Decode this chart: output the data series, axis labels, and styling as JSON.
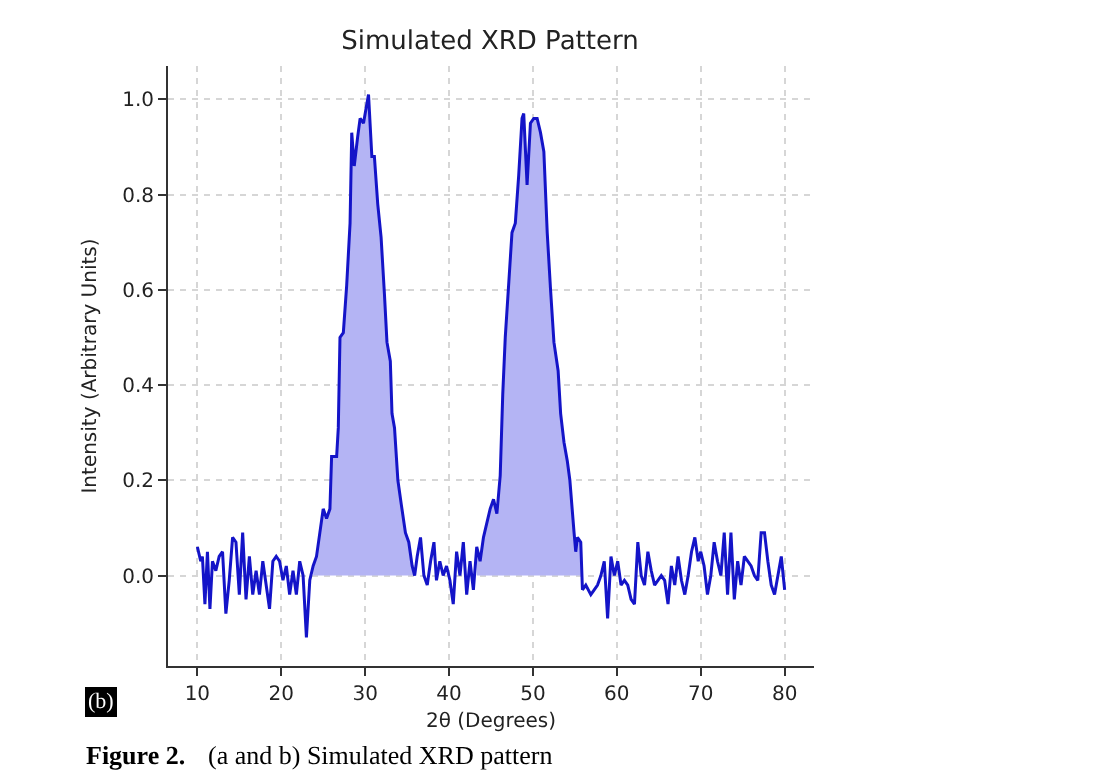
{
  "chart_data": {
    "type": "line",
    "title": "Simulated XRD Pattern",
    "xlabel": "2θ (Degrees)",
    "ylabel": "Intensity (Arbitrary Units)",
    "annotations": [
      "(b)",
      "Figure 2.",
      "(a and b) Simulated XRD pattern"
    ],
    "xlim": [
      6.5,
      83.5
    ],
    "xticks": [
      10,
      20,
      30,
      40,
      50,
      60,
      70,
      80
    ],
    "ylim": [
      -0.19,
      1.07
    ],
    "yticks": [
      {
        "value": 0,
        "label": "0.0"
      },
      0.2,
      0.4,
      0.6,
      0.8,
      {
        "value": 1,
        "label": "1.0"
      }
    ],
    "grid": true,
    "marker": "none",
    "line_style": "solid",
    "series": [
      {
        "type": "area",
        "color": "#b4b4f4",
        "x": [
          23.8,
          24.2,
          24.6,
          25.0,
          25.4,
          25.8,
          26.0,
          26.6,
          26.8,
          27.0,
          27.4,
          27.8,
          28.2,
          28.4,
          28.7,
          29.1,
          29.4,
          29.8,
          30.2,
          30.4,
          30.8,
          31.1,
          31.5,
          31.9,
          32.3,
          32.6,
          33.0,
          33.2,
          33.5,
          33.9,
          34.3,
          34.8,
          35.2,
          35.6,
          35.9
        ],
        "values": [
          0.02,
          0.04,
          0.09,
          0.14,
          0.12,
          0.14,
          0.25,
          0.25,
          0.31,
          0.5,
          0.51,
          0.61,
          0.74,
          0.93,
          0.86,
          0.92,
          0.96,
          0.95,
          0.99,
          1.01,
          0.88,
          0.88,
          0.78,
          0.71,
          0.59,
          0.49,
          0.45,
          0.34,
          0.31,
          0.2,
          0.15,
          0.09,
          0.07,
          0.02,
          0
        ]
      },
      {
        "type": "area",
        "color": "#b4b4f4",
        "x": [
          43.3,
          43.7,
          44.1,
          44.5,
          44.9,
          45.3,
          45.7,
          46.1,
          46.4,
          46.7,
          47.1,
          47.5,
          47.9,
          48.3,
          48.7,
          48.9,
          49.3,
          49.7,
          50.1,
          50.5,
          50.9,
          51.3,
          51.7,
          52.1,
          52.5,
          53.0,
          53.3,
          53.7,
          54.1,
          54.4,
          54.9,
          55.1,
          55.3,
          55.7
        ],
        "values": [
          0.06,
          0.03,
          0.08,
          0.11,
          0.14,
          0.16,
          0.13,
          0.21,
          0.38,
          0.5,
          0.61,
          0.72,
          0.74,
          0.84,
          0.96,
          0.97,
          0.82,
          0.95,
          0.96,
          0.96,
          0.93,
          0.89,
          0.72,
          0.6,
          0.49,
          0.43,
          0.34,
          0.28,
          0.24,
          0.2,
          0.09,
          0.05,
          0.08,
          0.07
        ]
      },
      {
        "color": "#1414c8",
        "x": [
          10.0,
          10.4,
          10.6,
          10.9,
          11.2,
          11.5,
          11.8,
          12.2,
          12.6,
          13.0,
          13.4,
          13.8,
          14.2,
          14.6,
          15.0,
          15.4,
          15.8,
          16.2,
          16.6,
          17.0,
          17.4,
          17.8,
          18.2,
          18.6,
          19.0,
          19.4,
          19.8,
          20.2,
          20.6,
          21.0,
          21.4,
          21.8,
          22.2,
          22.6,
          23.0,
          23.4,
          23.8,
          24.2,
          24.6,
          25.0,
          25.4,
          25.8,
          26.0,
          26.6,
          26.8,
          27.0,
          27.4,
          27.8,
          28.2,
          28.4,
          28.7,
          29.1,
          29.4,
          29.8,
          30.2,
          30.4,
          30.8,
          31.1,
          31.5,
          31.9,
          32.3,
          32.6,
          33.0,
          33.2,
          33.5,
          33.9,
          34.3,
          34.8,
          35.2,
          35.6,
          35.9,
          36.2,
          36.6,
          37.0,
          37.4,
          37.8,
          38.2,
          38.5,
          38.9,
          39.3,
          39.7,
          40.1,
          40.5,
          40.9,
          41.3,
          41.7,
          42.1,
          42.5,
          42.9,
          43.3,
          43.7,
          44.1,
          44.5,
          44.9,
          45.3,
          45.7,
          46.1,
          46.4,
          46.7,
          47.1,
          47.5,
          47.9,
          48.3,
          48.7,
          48.9,
          49.3,
          49.7,
          50.1,
          50.5,
          50.9,
          51.3,
          51.7,
          52.1,
          52.5,
          53.0,
          53.3,
          53.7,
          54.1,
          54.4,
          54.9,
          55.1,
          55.3,
          55.7,
          55.9,
          56.3,
          56.9,
          57.3,
          57.7,
          58.1,
          58.5,
          58.9,
          59.3,
          59.7,
          60.1,
          60.5,
          60.9,
          61.3,
          61.7,
          62.1,
          62.5,
          62.9,
          63.3,
          63.7,
          64.1,
          64.5,
          64.9,
          65.3,
          65.7,
          66.1,
          66.5,
          66.9,
          67.3,
          67.7,
          68.1,
          68.5,
          68.9,
          69.3,
          69.7,
          70.0,
          70.4,
          70.8,
          71.2,
          71.6,
          72.0,
          72.4,
          72.8,
          73.2,
          73.6,
          74.0,
          74.4,
          74.8,
          75.2,
          75.6,
          76.0,
          76.4,
          76.8,
          77.2,
          77.6,
          78.0,
          78.4,
          78.8,
          79.2,
          79.6,
          80.0
        ],
        "values": [
          0.06,
          0.03,
          0.04,
          -0.06,
          0.05,
          -0.07,
          0.03,
          0.01,
          0.04,
          0.05,
          -0.08,
          -0.01,
          0.08,
          0.07,
          -0.04,
          0.09,
          -0.05,
          0.04,
          -0.04,
          0.01,
          -0.04,
          0.03,
          -0.02,
          -0.07,
          0.03,
          0.04,
          0.03,
          -0.01,
          0.02,
          -0.04,
          0.01,
          -0.04,
          0.03,
          0,
          -0.13,
          -0.01,
          0.02,
          0.04,
          0.09,
          0.14,
          0.12,
          0.14,
          0.25,
          0.25,
          0.31,
          0.5,
          0.51,
          0.61,
          0.74,
          0.93,
          0.86,
          0.92,
          0.96,
          0.95,
          0.99,
          1.01,
          0.88,
          0.88,
          0.78,
          0.71,
          0.59,
          0.49,
          0.45,
          0.34,
          0.31,
          0.2,
          0.15,
          0.09,
          0.07,
          0.02,
          0,
          0.04,
          0.08,
          0,
          -0.02,
          0.03,
          0.07,
          -0.01,
          0.03,
          0,
          0.02,
          -0.01,
          -0.06,
          0.05,
          0,
          0.07,
          -0.04,
          0.03,
          -0.03,
          0.06,
          0.03,
          0.08,
          0.11,
          0.14,
          0.16,
          0.13,
          0.21,
          0.38,
          0.5,
          0.61,
          0.72,
          0.74,
          0.84,
          0.96,
          0.97,
          0.82,
          0.95,
          0.96,
          0.96,
          0.93,
          0.89,
          0.72,
          0.6,
          0.49,
          0.43,
          0.34,
          0.28,
          0.24,
          0.2,
          0.09,
          0.05,
          0.08,
          0.07,
          -0.03,
          -0.02,
          -0.04,
          -0.03,
          -0.02,
          0,
          0.03,
          -0.09,
          0.04,
          0,
          0.03,
          -0.02,
          -0.01,
          -0.02,
          -0.05,
          -0.06,
          0.07,
          0,
          -0.02,
          0.05,
          0.01,
          -0.02,
          -0.01,
          0,
          -0.01,
          -0.06,
          0.02,
          -0.02,
          0.04,
          -0.01,
          -0.04,
          0,
          0.05,
          0.08,
          0.03,
          0.05,
          0.02,
          -0.04,
          0,
          0.07,
          0.03,
          0,
          0.09,
          -0.04,
          0.09,
          -0.05,
          0.03,
          -0.02,
          0.04,
          0.03,
          0.02,
          0,
          -0.01,
          0.09,
          0.09,
          0.03,
          -0.02,
          -0.04,
          0,
          0.04,
          -0.03
        ]
      }
    ]
  }
}
